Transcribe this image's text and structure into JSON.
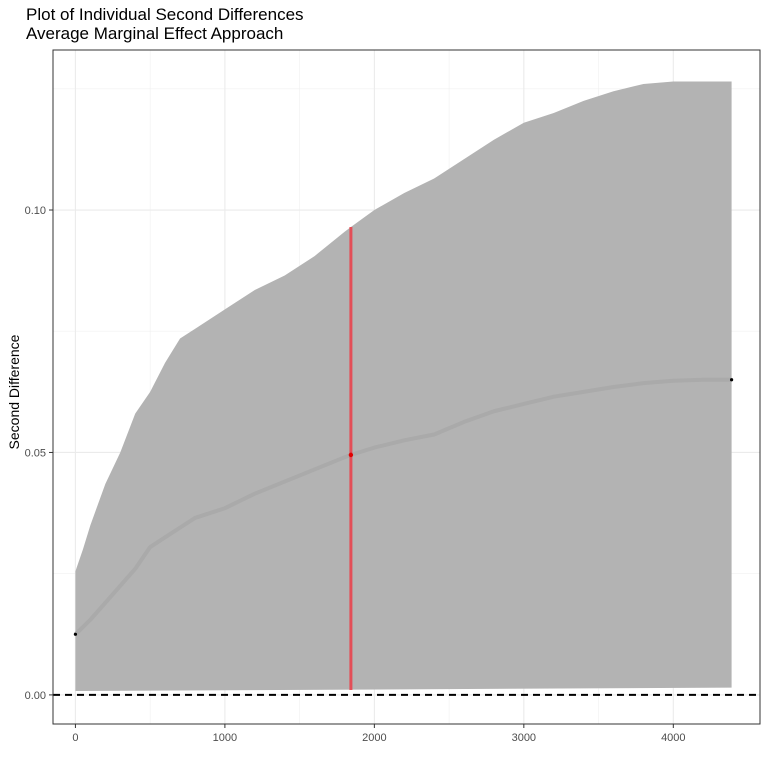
{
  "chart_data": {
    "type": "line",
    "title": "Plot of Individual Second Differences",
    "subtitle": "Average Marginal Effect Approach",
    "xlabel": "",
    "ylabel": "Second Difference",
    "xlim": [
      -150,
      4580
    ],
    "ylim": [
      -0.006,
      0.133
    ],
    "x_ticks": [
      "0",
      "1000",
      "2000",
      "3000",
      "4000"
    ],
    "y_ticks": [
      "0.00",
      "0.05",
      "0.10"
    ],
    "grid": true,
    "reference_line_y": 0,
    "series": [
      {
        "role": "estimate",
        "x": [
          0,
          50,
          100,
          200,
          300,
          400,
          500,
          600,
          700,
          800,
          1000,
          1200,
          1400,
          1600,
          1800,
          1843,
          2000,
          2200,
          2400,
          2600,
          2800,
          3000,
          3200,
          3400,
          3600,
          3800,
          4000,
          4200,
          4390
        ],
        "y": [
          0.0125,
          0.014,
          0.0155,
          0.019,
          0.0225,
          0.026,
          0.0305,
          0.0325,
          0.0345,
          0.0365,
          0.0385,
          0.0415,
          0.044,
          0.0465,
          0.049,
          0.0495,
          0.051,
          0.0525,
          0.0537,
          0.0563,
          0.0585,
          0.06,
          0.0615,
          0.0625,
          0.0635,
          0.0643,
          0.0648,
          0.065,
          0.065
        ]
      },
      {
        "role": "interval-upper",
        "x": [
          0,
          50,
          100,
          200,
          300,
          400,
          500,
          600,
          700,
          800,
          1000,
          1200,
          1400,
          1600,
          1800,
          1843,
          2000,
          2200,
          2400,
          2600,
          2800,
          3000,
          3200,
          3400,
          3600,
          3800,
          4000,
          4200,
          4390
        ],
        "y": [
          0.0255,
          0.03,
          0.035,
          0.0435,
          0.05,
          0.058,
          0.0625,
          0.0685,
          0.0735,
          0.0755,
          0.0795,
          0.0835,
          0.0865,
          0.0905,
          0.0955,
          0.0965,
          0.1,
          0.1035,
          0.1065,
          0.1105,
          0.1145,
          0.118,
          0.12,
          0.1225,
          0.1245,
          0.126,
          0.1265,
          0.1265,
          0.1265
        ]
      },
      {
        "role": "interval-lower",
        "x": [
          0,
          4390
        ],
        "y": [
          0.0008,
          0.0015
        ]
      }
    ],
    "highlight": {
      "x": 1843,
      "y": 0.0495,
      "lower": 0.001,
      "upper": 0.0965,
      "color": "#e8434d"
    },
    "colors": {
      "interval": "#b3b3b3",
      "estimate": "#aaaaaa",
      "reference": "#000000",
      "highlight": "#e8434d"
    }
  }
}
